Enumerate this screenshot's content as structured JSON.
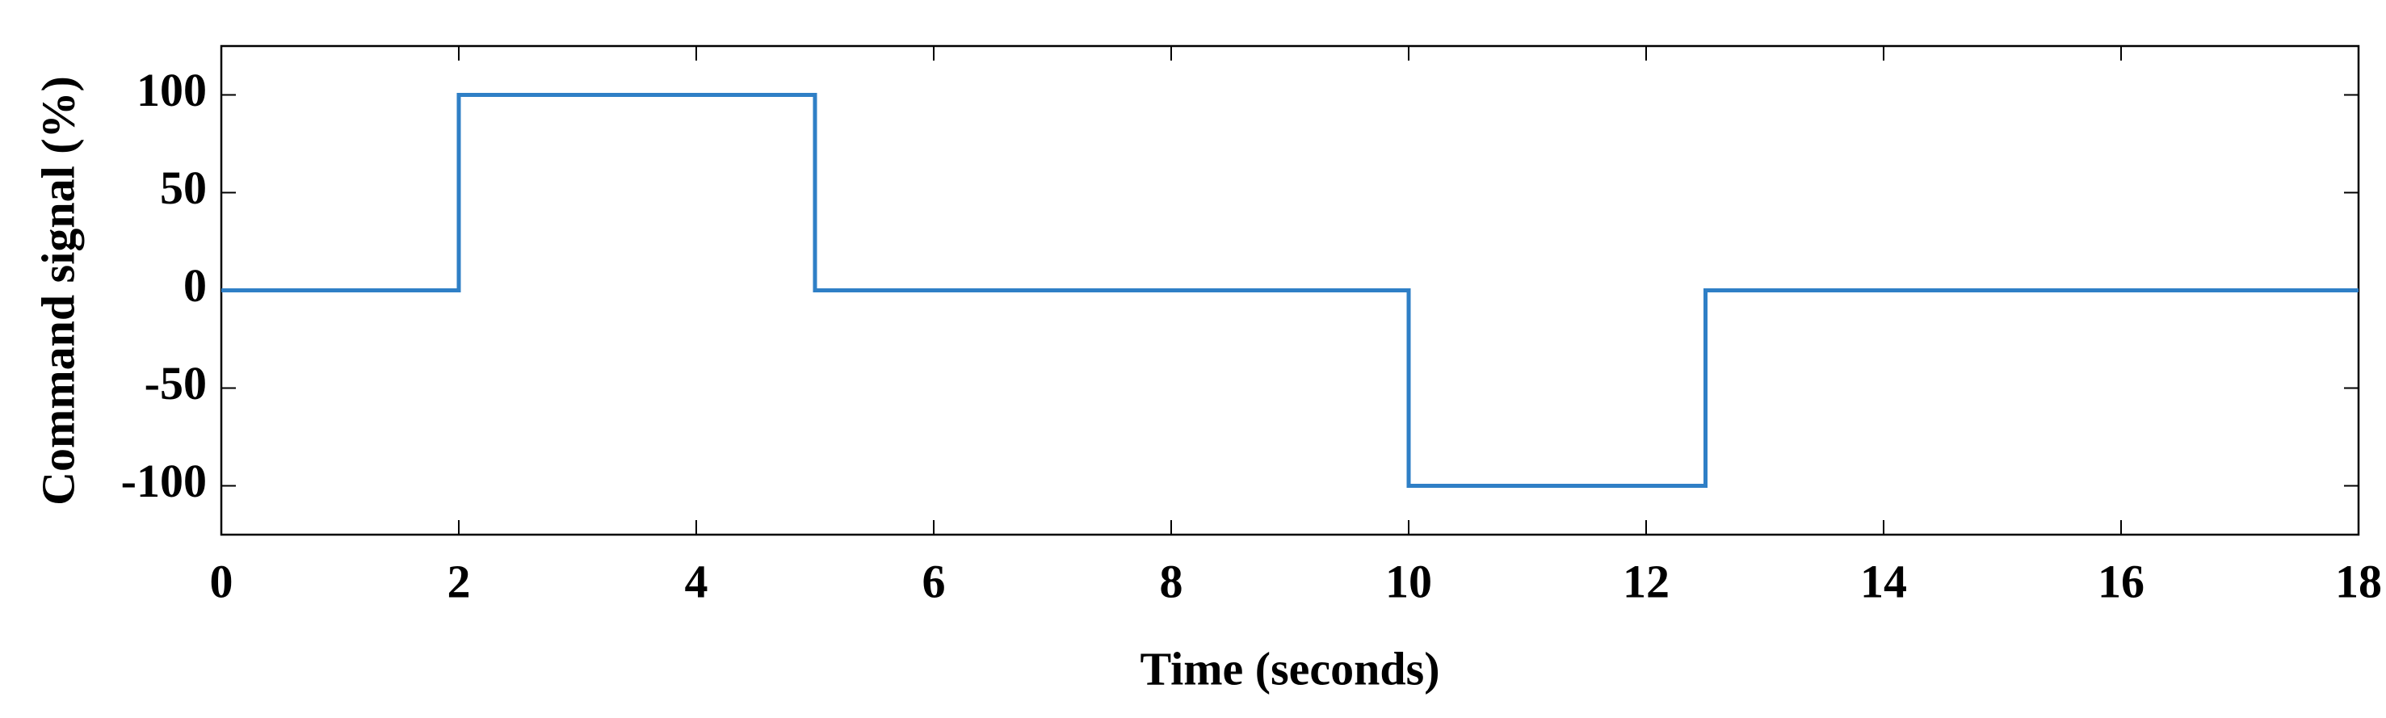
{
  "chart_data": {
    "type": "line",
    "xlabel": "Time (seconds)",
    "ylabel": "Command signal (%)",
    "x": [
      0,
      2,
      2,
      5,
      5,
      10,
      10,
      12.5,
      12.5,
      18
    ],
    "series": [
      {
        "color": "#2f7fc6",
        "values": [
          0,
          0,
          100,
          100,
          0,
          0,
          -100,
          -100,
          0,
          0
        ]
      }
    ],
    "xlim": [
      0,
      18
    ],
    "xticks": [
      0,
      2,
      4,
      6,
      8,
      10,
      12,
      14,
      16,
      18
    ],
    "ylim": [
      -125,
      125
    ],
    "yticks": [
      -100,
      -50,
      0,
      50,
      100
    ],
    "grid": false
  }
}
